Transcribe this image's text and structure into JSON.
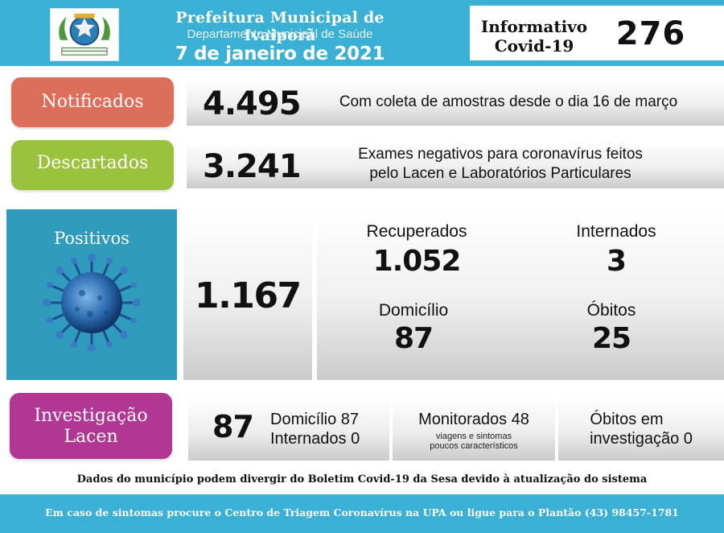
{
  "header": {
    "title": "Prefeitura Municipal de Ivaiporã",
    "subtitle": "Departamento Municipal de Saúde",
    "date": "7 de janeiro de 2021",
    "info_line1": "Informativo",
    "info_line2": "Covid-19",
    "bulletin_number": "276",
    "logo_icon": "coat-of-arms-icon"
  },
  "notificados": {
    "label": "Notificados",
    "value": "4.495",
    "description": "Com coleta de amostras desde o dia 16 de março",
    "color": "#dd6f5a"
  },
  "descartados": {
    "label": "Descartados",
    "value": "3.241",
    "description_line1": "Exames negativos para coronavírus feitos",
    "description_line2": "pelo Lacen e Laboratórios Particulares",
    "color": "#9bc23c"
  },
  "positivos": {
    "label": "Positivos",
    "value": "1.167",
    "icon": "coronavirus-icon",
    "color": "#2f9bbd",
    "recuperados_label": "Recuperados",
    "recuperados_value": "1.052",
    "internados_label": "Internados",
    "internados_value": "3",
    "domicilio_label": "Domicílio",
    "domicilio_value": "87",
    "obitos_label": "Óbitos",
    "obitos_value": "25"
  },
  "investigacao": {
    "label_line1": "Investigação",
    "label_line2": "Lacen",
    "color": "#b23694",
    "value": "87",
    "domicilio_text": "Domicílio 87",
    "internados_text": "Internados 0",
    "monitorados_text": "Monitorados 48",
    "monitorados_note_line1": "viagens e sintomas",
    "monitorados_note_line2": "poucos característicos",
    "obitos_line1": "Óbitos em",
    "obitos_line2": "investigação 0"
  },
  "disclaimer": "Dados do município podem divergir do Boletim Covid-19 da Sesa devido à atualização do sistema",
  "footer": "Em caso de sintomas procure o Centro de Triagem Coronavírus na UPA ou ligue para o Plantão (43) 98457-1781"
}
